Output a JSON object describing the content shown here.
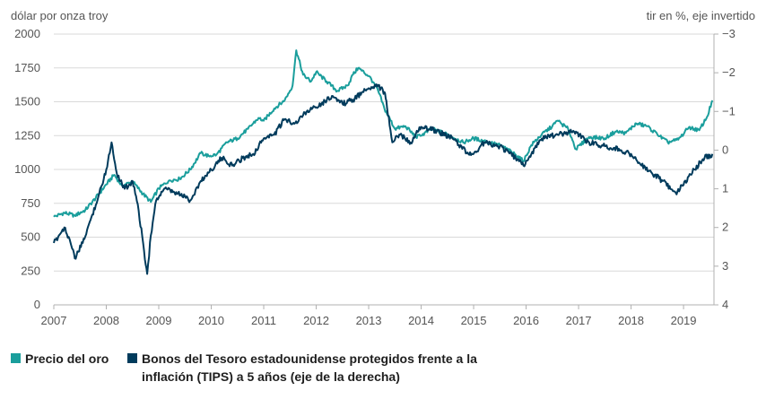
{
  "chart_data": {
    "type": "line",
    "left_axis_title": "dólar por onza troy",
    "right_axis_title": "tir en %, eje invertido",
    "left_ticks": [
      "0",
      "250",
      "500",
      "750",
      "1000",
      "1250",
      "1500",
      "1750",
      "2000"
    ],
    "left_ylim": [
      0,
      2000
    ],
    "right_ticks": [
      "−3",
      "−2",
      "−1",
      "0",
      "1",
      "2",
      "3",
      "4"
    ],
    "right_ylim": [
      -3,
      4
    ],
    "right_inverted": true,
    "x_ticks": [
      "2007",
      "2008",
      "2009",
      "2010",
      "2011",
      "2012",
      "2013",
      "2014",
      "2015",
      "2016",
      "2017",
      "2018",
      "2019"
    ],
    "xlim": [
      2007.0,
      2019.58
    ],
    "grid": "horizontal",
    "legend_position": "bottom-left",
    "series": [
      {
        "name": "Precio del oro",
        "axis": "left",
        "color": "#1a9e9c",
        "x": [
          2007.0,
          2007.2,
          2007.4,
          2007.6,
          2007.8,
          2008.0,
          2008.15,
          2008.3,
          2008.5,
          2008.7,
          2008.85,
          2009.0,
          2009.2,
          2009.4,
          2009.6,
          2009.8,
          2009.95,
          2010.1,
          2010.3,
          2010.5,
          2010.7,
          2010.9,
          2011.0,
          2011.2,
          2011.4,
          2011.55,
          2011.62,
          2011.75,
          2011.9,
          2012.0,
          2012.2,
          2012.4,
          2012.6,
          2012.7,
          2012.8,
          2013.0,
          2013.1,
          2013.2,
          2013.3,
          2013.5,
          2013.7,
          2013.9,
          2014.0,
          2014.2,
          2014.5,
          2014.8,
          2015.0,
          2015.2,
          2015.5,
          2015.8,
          2015.95,
          2016.1,
          2016.3,
          2016.5,
          2016.6,
          2016.8,
          2016.95,
          2017.2,
          2017.5,
          2017.7,
          2017.9,
          2018.1,
          2018.3,
          2018.5,
          2018.7,
          2018.9,
          2019.1,
          2019.3,
          2019.45,
          2019.55
        ],
        "y": [
          650,
          680,
          660,
          700,
          790,
          890,
          960,
          880,
          910,
          820,
          760,
          860,
          920,
          930,
          1000,
          1120,
          1100,
          1110,
          1200,
          1230,
          1300,
          1380,
          1360,
          1450,
          1510,
          1620,
          1880,
          1700,
          1650,
          1720,
          1650,
          1580,
          1620,
          1700,
          1750,
          1690,
          1640,
          1560,
          1450,
          1300,
          1320,
          1240,
          1250,
          1300,
          1260,
          1200,
          1230,
          1210,
          1180,
          1110,
          1060,
          1180,
          1260,
          1320,
          1360,
          1300,
          1150,
          1240,
          1230,
          1280,
          1270,
          1340,
          1320,
          1260,
          1200,
          1220,
          1310,
          1290,
          1390,
          1510
        ]
      },
      {
        "name": "Bonos del Tesoro estadounidense protegidos frente a la inflación (TIPS) a 5 años (eje de la derecha)",
        "axis": "right",
        "color": "#003b5c",
        "x": [
          2007.0,
          2007.1,
          2007.2,
          2007.3,
          2007.4,
          2007.55,
          2007.7,
          2007.85,
          2008.0,
          2008.1,
          2008.2,
          2008.35,
          2008.5,
          2008.6,
          2008.72,
          2008.78,
          2008.85,
          2008.95,
          2009.1,
          2009.3,
          2009.5,
          2009.6,
          2009.8,
          2010.0,
          2010.2,
          2010.4,
          2010.6,
          2010.8,
          2011.0,
          2011.2,
          2011.4,
          2011.6,
          2011.75,
          2011.9,
          2012.1,
          2012.3,
          2012.5,
          2012.7,
          2012.9,
          2013.0,
          2013.15,
          2013.3,
          2013.35,
          2013.45,
          2013.6,
          2013.8,
          2014.0,
          2014.3,
          2014.6,
          2014.9,
          2015.0,
          2015.2,
          2015.5,
          2015.8,
          2015.95,
          2016.1,
          2016.3,
          2016.6,
          2016.9,
          2017.2,
          2017.5,
          2017.8,
          2018.0,
          2018.2,
          2018.4,
          2018.6,
          2018.75,
          2018.85,
          2019.0,
          2019.2,
          2019.4,
          2019.55
        ],
        "y": [
          2.4,
          2.2,
          2.0,
          2.3,
          2.8,
          2.4,
          1.8,
          1.2,
          0.5,
          -0.2,
          0.6,
          1.0,
          0.8,
          1.4,
          2.6,
          3.2,
          2.2,
          1.3,
          1.0,
          1.1,
          1.2,
          1.3,
          0.8,
          0.5,
          0.2,
          0.4,
          0.2,
          0.1,
          -0.3,
          -0.4,
          -0.8,
          -0.7,
          -0.9,
          -1.1,
          -1.2,
          -1.4,
          -1.2,
          -1.3,
          -1.5,
          -1.6,
          -1.7,
          -1.5,
          -1.1,
          -0.2,
          -0.4,
          -0.2,
          -0.6,
          -0.5,
          -0.3,
          0.1,
          0.1,
          -0.2,
          -0.1,
          0.2,
          0.4,
          0.1,
          -0.3,
          -0.4,
          -0.5,
          -0.2,
          -0.1,
          0.0,
          0.1,
          0.4,
          0.6,
          0.8,
          1.0,
          1.1,
          0.9,
          0.5,
          0.2,
          0.1
        ]
      }
    ]
  },
  "legend": {
    "gold_label": "Precio del oro",
    "tips_label": "Bonos del Tesoro estadounidense protegidos frente a la inflación (TIPS) a 5 años (eje de la derecha)"
  }
}
